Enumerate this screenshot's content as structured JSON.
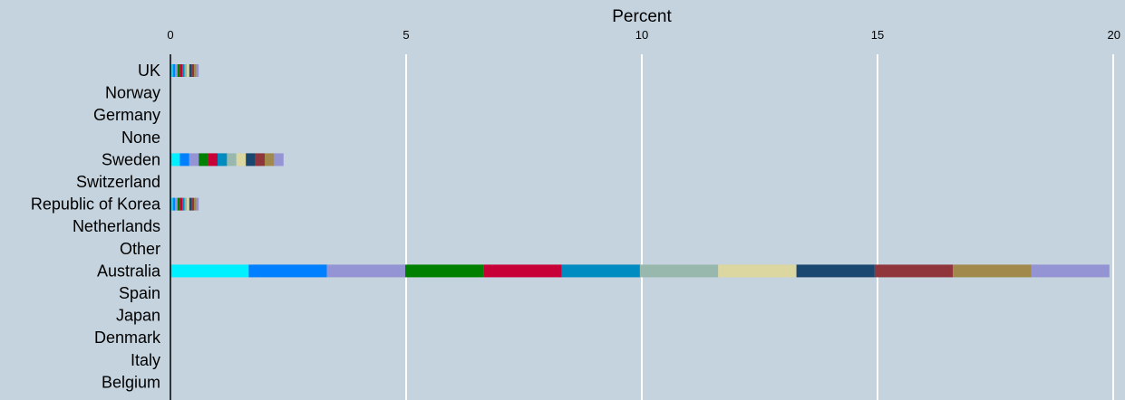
{
  "chart_data": {
    "type": "bar",
    "stacked": true,
    "orientation": "horizontal",
    "title": "",
    "xlabel": "Percent",
    "ylabel": "",
    "xlim": [
      0,
      20
    ],
    "x_ticks": [
      "0",
      "5",
      "10",
      "15",
      "20"
    ],
    "x_axis_position": "top",
    "grid": "vertical",
    "categories": [
      "UK",
      "Norway",
      "Germany",
      "None",
      "Sweden",
      "Switzerland",
      "Republic of Korea",
      "Netherlands",
      "Other",
      "Australia",
      "Spain",
      "Japan",
      "Denmark",
      "Italy",
      "Belgium"
    ],
    "series": [
      {
        "color": "#00f0ff",
        "values": [
          0.05,
          0,
          0,
          0,
          0.2,
          0,
          0.05,
          0,
          0,
          1.66,
          0,
          0,
          0,
          0,
          0
        ]
      },
      {
        "color": "#0080ff",
        "values": [
          0.05,
          0,
          0,
          0,
          0.2,
          0,
          0.05,
          0,
          0,
          1.66,
          0,
          0,
          0,
          0,
          0
        ]
      },
      {
        "color": "#9494d4",
        "values": [
          0.05,
          0,
          0,
          0,
          0.2,
          0,
          0.05,
          0,
          0,
          1.66,
          0,
          0,
          0,
          0,
          0
        ]
      },
      {
        "color": "#008000",
        "values": [
          0.05,
          0,
          0,
          0,
          0.2,
          0,
          0.05,
          0,
          0,
          1.66,
          0,
          0,
          0,
          0,
          0
        ]
      },
      {
        "color": "#c80038",
        "values": [
          0.05,
          0,
          0,
          0,
          0.2,
          0,
          0.05,
          0,
          0,
          1.66,
          0,
          0,
          0,
          0,
          0
        ]
      },
      {
        "color": "#008cc0",
        "values": [
          0.05,
          0,
          0,
          0,
          0.2,
          0,
          0.05,
          0,
          0,
          1.66,
          0,
          0,
          0,
          0,
          0
        ]
      },
      {
        "color": "#98b8ae",
        "values": [
          0.05,
          0,
          0,
          0,
          0.2,
          0,
          0.05,
          0,
          0,
          1.66,
          0,
          0,
          0,
          0,
          0
        ]
      },
      {
        "color": "#dcd6a0",
        "values": [
          0.05,
          0,
          0,
          0,
          0.2,
          0,
          0.05,
          0,
          0,
          1.66,
          0,
          0,
          0,
          0,
          0
        ]
      },
      {
        "color": "#1a476f",
        "values": [
          0.05,
          0,
          0,
          0,
          0.2,
          0,
          0.05,
          0,
          0,
          1.66,
          0,
          0,
          0,
          0,
          0
        ]
      },
      {
        "color": "#90353b",
        "values": [
          0.05,
          0,
          0,
          0,
          0.2,
          0,
          0.05,
          0,
          0,
          1.66,
          0,
          0,
          0,
          0,
          0
        ]
      },
      {
        "color": "#a0894a",
        "values": [
          0.05,
          0,
          0,
          0,
          0.2,
          0,
          0.05,
          0,
          0,
          1.66,
          0,
          0,
          0,
          0,
          0
        ]
      },
      {
        "color": "#9494d4",
        "values": [
          0.05,
          0,
          0,
          0,
          0.2,
          0,
          0.05,
          0,
          0,
          1.66,
          0,
          0,
          0,
          0,
          0
        ]
      }
    ],
    "colors": {
      "background": "#c5d3de",
      "gridline": "#ffffff",
      "axis": "#000000"
    }
  }
}
